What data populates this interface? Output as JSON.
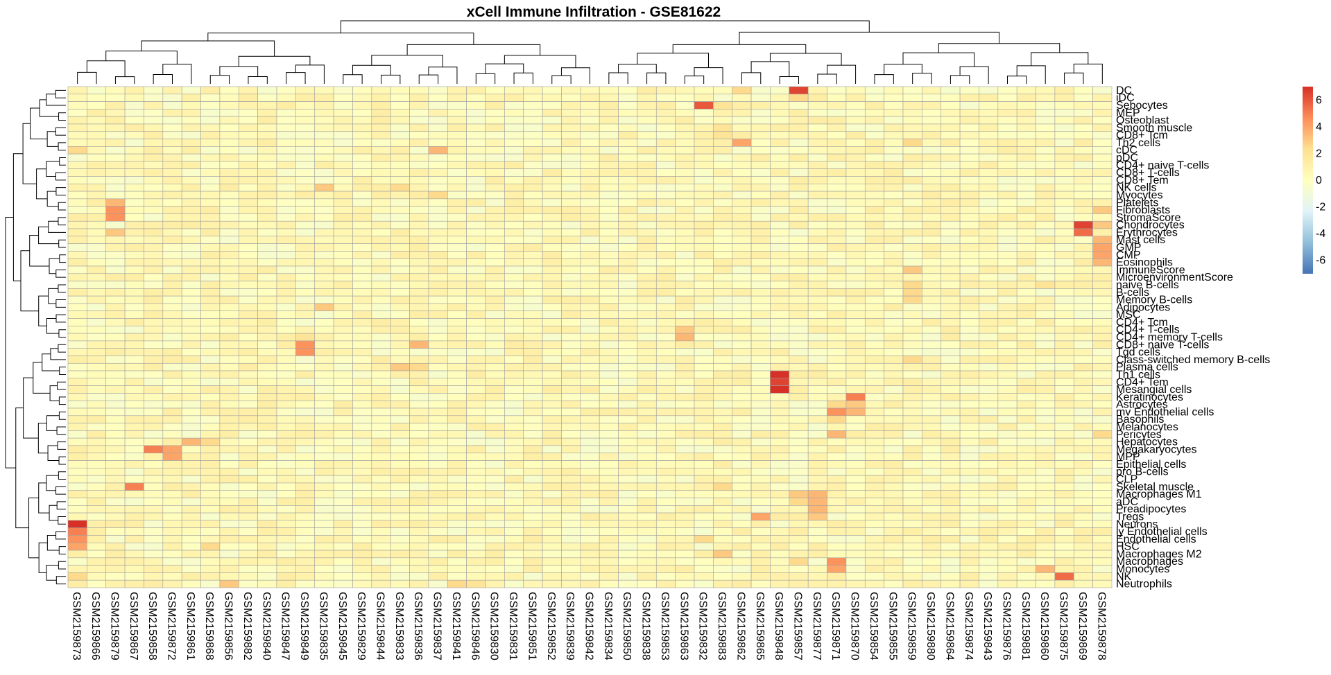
{
  "chart_data": {
    "type": "heatmap",
    "title": "xCell Immune Infiltration - GSE81622",
    "xlabel": "",
    "ylabel": "",
    "columns": [
      "GSM2159873",
      "GSM2159866",
      "GSM2159879",
      "GSM2159867",
      "GSM2159858",
      "GSM2159872",
      "GSM2159861",
      "GSM2159868",
      "GSM2159856",
      "GSM2159882",
      "GSM2159840",
      "GSM2159847",
      "GSM2159849",
      "GSM2159835",
      "GSM2159845",
      "GSM2159829",
      "GSM2159844",
      "GSM2159833",
      "GSM2159836",
      "GSM2159837",
      "GSM2159841",
      "GSM2159846",
      "GSM2159830",
      "GSM2159831",
      "GSM2159851",
      "GSM2159852",
      "GSM2159839",
      "GSM2159842",
      "GSM2159834",
      "GSM2159850",
      "GSM2159838",
      "GSM2159853",
      "GSM2159863",
      "GSM2159832",
      "GSM2159883",
      "GSM2159862",
      "GSM2159865",
      "GSM2159848",
      "GSM2159857",
      "GSM2159877",
      "GSM2159871",
      "GSM2159870",
      "GSM2159854",
      "GSM2159855",
      "GSM2159859",
      "GSM2159880",
      "GSM2159864",
      "GSM2159874",
      "GSM2159843",
      "GSM2159876",
      "GSM2159881",
      "GSM2159860",
      "GSM2159875",
      "GSM2159869",
      "GSM2159878"
    ],
    "rows": [
      "DC",
      "iDC",
      "Sebocytes",
      "MEP",
      "Osteoblast",
      "Smooth muscle",
      "CD8+ Tcm",
      "Th2 cells",
      "cDC",
      "pDC",
      "CD4+ naive T-cells",
      "CD8+ T-cells",
      "CD8+ Tem",
      "NK cells",
      "Myocytes",
      "Platelets",
      "Fibroblasts",
      "StromaScore",
      "Chondrocytes",
      "Erythrocytes",
      "Mast cells",
      "GMP",
      "CMP",
      "Eosinophils",
      "ImmuneScore",
      "MicroenvironmentScore",
      "naive B-cells",
      "B-cells",
      "Memory B-cells",
      "Adipocytes",
      "MSC",
      "CD4+ Tcm",
      "CD4+ T-cells",
      "CD4+ memory T-cells",
      "CD8+ naive T-cells",
      "Tgd cells",
      "Class-switched memory B-cells",
      "Plasma cells",
      "Th1 cells",
      "CD4+ Tem",
      "Mesangial cells",
      "Keratinocytes",
      "Astrocytes",
      "mv Endothelial cells",
      "Basophils",
      "Melanocytes",
      "Pericytes",
      "Hepatocytes",
      "Megakaryocytes",
      "MPP",
      "Epithelial cells",
      "pro B-cells",
      "CLP",
      "Skeletal muscle",
      "Macrophages M1",
      "aDC",
      "Preadipocytes",
      "Tregs",
      "Neurons",
      "ly Endothelial cells",
      "Endothelial cells",
      "HSC",
      "Macrophages M2",
      "Macrophages",
      "Monocytes",
      "NK",
      "Neutrophils"
    ],
    "highlights": [
      {
        "row": "DC",
        "col": "GSM2159857",
        "value": 6.5
      },
      {
        "row": "DC",
        "col": "GSM2159862",
        "value": 2.5
      },
      {
        "row": "iDC",
        "col": "GSM2159857",
        "value": 2.5
      },
      {
        "row": "Sebocytes",
        "col": "GSM2159832",
        "value": 6.0
      },
      {
        "row": "Sebocytes",
        "col": "GSM2159883",
        "value": 2.0
      },
      {
        "row": "Smooth muscle",
        "col": "GSM2159883",
        "value": 2.0
      },
      {
        "row": "CD8+ Tcm",
        "col": "GSM2159883",
        "value": 2.0
      },
      {
        "row": "Th2 cells",
        "col": "GSM2159862",
        "value": 4.0
      },
      {
        "row": "Th2 cells",
        "col": "GSM2159859",
        "value": 2.5
      },
      {
        "row": "cDC",
        "col": "GSM2159873",
        "value": 2.5
      },
      {
        "row": "cDC",
        "col": "GSM2159837",
        "value": 3.5
      },
      {
        "row": "NK cells",
        "col": "GSM2159835",
        "value": 3.0
      },
      {
        "row": "NK cells",
        "col": "GSM2159833",
        "value": 2.5
      },
      {
        "row": "Myocytes",
        "col": "GSM2159837",
        "value": 2.5
      },
      {
        "row": "Platelets",
        "col": "GSM2159879",
        "value": 3.5
      },
      {
        "row": "Fibroblasts",
        "col": "GSM2159879",
        "value": 4.5
      },
      {
        "row": "Fibroblasts",
        "col": "GSM2159878",
        "value": 3.0
      },
      {
        "row": "StromaScore",
        "col": "GSM2159879",
        "value": 4.5
      },
      {
        "row": "Chondrocytes",
        "col": "GSM2159869",
        "value": 6.5
      },
      {
        "row": "Chondrocytes",
        "col": "GSM2159878",
        "value": 3.0
      },
      {
        "row": "Erythrocytes",
        "col": "GSM2159869",
        "value": 5.5
      },
      {
        "row": "Erythrocytes",
        "col": "GSM2159879",
        "value": 3.0
      },
      {
        "row": "Mast cells",
        "col": "GSM2159878",
        "value": 3.5
      },
      {
        "row": "GMP",
        "col": "GSM2159878",
        "value": 4.0
      },
      {
        "row": "CMP",
        "col": "GSM2159878",
        "value": 4.0
      },
      {
        "row": "Eosinophils",
        "col": "GSM2159878",
        "value": 3.5
      },
      {
        "row": "ImmuneScore",
        "col": "GSM2159859",
        "value": 3.0
      },
      {
        "row": "naive B-cells",
        "col": "GSM2159859",
        "value": 2.5
      },
      {
        "row": "naive B-cells",
        "col": "GSM2159860",
        "value": 2.0
      },
      {
        "row": "B-cells",
        "col": "GSM2159859",
        "value": 2.5
      },
      {
        "row": "Memory B-cells",
        "col": "GSM2159859",
        "value": 2.5
      },
      {
        "row": "Adipocytes",
        "col": "GSM2159835",
        "value": 3.0
      },
      {
        "row": "CD4+ T-cells",
        "col": "GSM2159863",
        "value": 3.0
      },
      {
        "row": "CD4+ memory T-cells",
        "col": "GSM2159863",
        "value": 3.5
      },
      {
        "row": "CD4+ memory T-cells",
        "col": "GSM2159849",
        "value": 2.0
      },
      {
        "row": "CD8+ naive T-cells",
        "col": "GSM2159849",
        "value": 4.5
      },
      {
        "row": "CD8+ naive T-cells",
        "col": "GSM2159836",
        "value": 3.5
      },
      {
        "row": "Tgd cells",
        "col": "GSM2159849",
        "value": 4.5
      },
      {
        "row": "Class-switched memory B-cells",
        "col": "GSM2159859",
        "value": 2.5
      },
      {
        "row": "Plasma cells",
        "col": "GSM2159833",
        "value": 3.0
      },
      {
        "row": "Plasma cells",
        "col": "GSM2159836",
        "value": 2.5
      },
      {
        "row": "Th1 cells",
        "col": "GSM2159848",
        "value": 7.0
      },
      {
        "row": "CD4+ Tem",
        "col": "GSM2159848",
        "value": 6.5
      },
      {
        "row": "Mesangial cells",
        "col": "GSM2159848",
        "value": 7.0
      },
      {
        "row": "Keratinocytes",
        "col": "GSM2159870",
        "value": 5.0
      },
      {
        "row": "Astrocytes",
        "col": "GSM2159870",
        "value": 3.0
      },
      {
        "row": "Astrocytes",
        "col": "GSM2159871",
        "value": 2.5
      },
      {
        "row": "mv Endothelial cells",
        "col": "GSM2159871",
        "value": 4.5
      },
      {
        "row": "mv Endothelial cells",
        "col": "GSM2159870",
        "value": 3.5
      },
      {
        "row": "Basophils",
        "col": "GSM2159871",
        "value": 2.5
      },
      {
        "row": "Pericytes",
        "col": "GSM2159871",
        "value": 3.5
      },
      {
        "row": "Pericytes",
        "col": "GSM2159878",
        "value": 2.5
      },
      {
        "row": "Hepatocytes",
        "col": "GSM2159861",
        "value": 3.5
      },
      {
        "row": "Hepatocytes",
        "col": "GSM2159868",
        "value": 2.5
      },
      {
        "row": "Megakaryocytes",
        "col": "GSM2159858",
        "value": 5.0
      },
      {
        "row": "Megakaryocytes",
        "col": "GSM2159872",
        "value": 4.0
      },
      {
        "row": "MPP",
        "col": "GSM2159872",
        "value": 4.0
      },
      {
        "row": "Skeletal muscle",
        "col": "GSM2159867",
        "value": 5.0
      },
      {
        "row": "Skeletal muscle",
        "col": "GSM2159883",
        "value": 2.5
      },
      {
        "row": "Macrophages M1",
        "col": "GSM2159877",
        "value": 3.5
      },
      {
        "row": "Macrophages M1",
        "col": "GSM2159857",
        "value": 3.0
      },
      {
        "row": "aDC",
        "col": "GSM2159877",
        "value": 3.5
      },
      {
        "row": "aDC",
        "col": "GSM2159857",
        "value": 2.5
      },
      {
        "row": "Preadipocytes",
        "col": "GSM2159877",
        "value": 3.5
      },
      {
        "row": "Tregs",
        "col": "GSM2159865",
        "value": 4.0
      },
      {
        "row": "Tregs",
        "col": "GSM2159877",
        "value": 3.0
      },
      {
        "row": "Neurons",
        "col": "GSM2159873",
        "value": 7.0
      },
      {
        "row": "ly Endothelial cells",
        "col": "GSM2159873",
        "value": 5.0
      },
      {
        "row": "Endothelial cells",
        "col": "GSM2159873",
        "value": 4.5
      },
      {
        "row": "Endothelial cells",
        "col": "GSM2159832",
        "value": 2.5
      },
      {
        "row": "HSC",
        "col": "GSM2159873",
        "value": 4.0
      },
      {
        "row": "HSC",
        "col": "GSM2159868",
        "value": 2.5
      },
      {
        "row": "Macrophages M2",
        "col": "GSM2159883",
        "value": 3.0
      },
      {
        "row": "Macrophages",
        "col": "GSM2159871",
        "value": 4.5
      },
      {
        "row": "Macrophages",
        "col": "GSM2159857",
        "value": 2.5
      },
      {
        "row": "Monocytes",
        "col": "GSM2159871",
        "value": 4.0
      },
      {
        "row": "Monocytes",
        "col": "GSM2159860",
        "value": 3.5
      },
      {
        "row": "NK",
        "col": "GSM2159875",
        "value": 5.5
      },
      {
        "row": "NK",
        "col": "GSM2159873",
        "value": 2.5
      },
      {
        "row": "Neutrophils",
        "col": "GSM2159856",
        "value": 3.0
      },
      {
        "row": "Neutrophils",
        "col": "GSM2159841",
        "value": 2.5
      },
      {
        "row": "Neutrophils",
        "col": "GSM2159846",
        "value": 2.0
      }
    ],
    "color_scale": {
      "ticks": [
        "6",
        "4",
        "2",
        "0",
        "-2",
        "-4",
        "-6"
      ],
      "range": [
        -7,
        7
      ],
      "colors": [
        "#4575b4",
        "#91bfdb",
        "#e0f3f8",
        "#ffffbf",
        "#fee090",
        "#fc8d59",
        "#d73027"
      ]
    },
    "row_dendrogram": true,
    "col_dendrogram": true,
    "legend_placement": "right"
  }
}
